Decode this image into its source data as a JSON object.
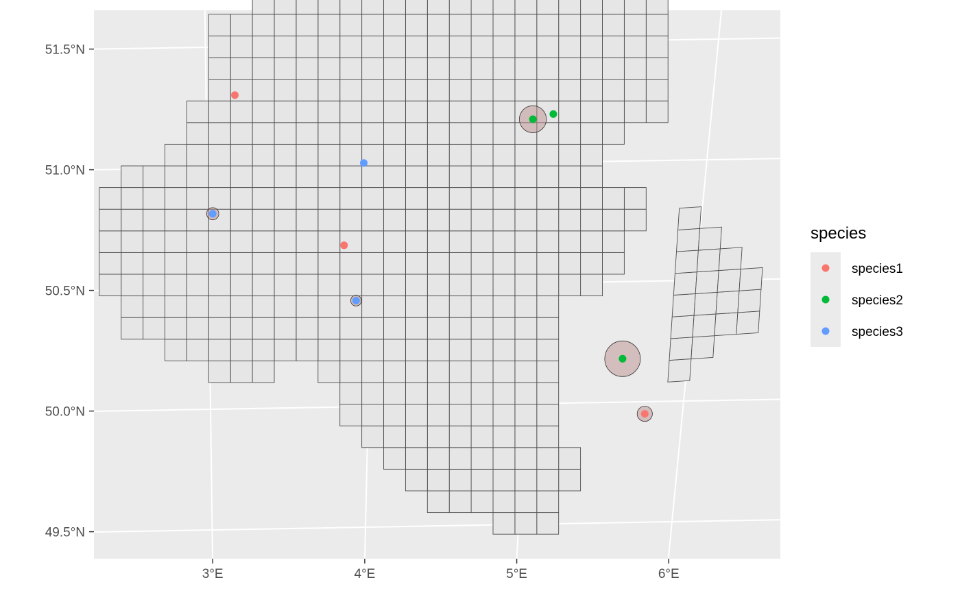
{
  "chart_data": {
    "type": "map",
    "x_axis": {
      "range": [
        2.35,
        6.62
      ],
      "ticks": [
        {
          "value": 3,
          "label": "3°E"
        },
        {
          "value": 4,
          "label": "4°E"
        },
        {
          "value": 5,
          "label": "5°E"
        },
        {
          "value": 6,
          "label": "6°E"
        }
      ]
    },
    "y_axis": {
      "range": [
        49.36,
        51.67
      ],
      "ticks": [
        {
          "value": 51.5,
          "label": "51.5°N"
        },
        {
          "value": 51.0,
          "label": "51.0°N"
        },
        {
          "value": 50.5,
          "label": "50.5°N"
        },
        {
          "value": 50.0,
          "label": "50.0°N"
        },
        {
          "value": 49.5,
          "label": "49.5°N"
        }
      ]
    },
    "grid": true,
    "legend": {
      "title": "species",
      "position": "right",
      "items": [
        {
          "label": "species1",
          "color": "#F8766D"
        },
        {
          "label": "species2",
          "color": "#00BA38"
        },
        {
          "label": "species3",
          "color": "#619CFF"
        }
      ]
    },
    "colors": {
      "panel_background": "#EBEBEB",
      "grid_line": "#FFFFFF",
      "cell_fill": "#E6E6E6",
      "cell_stroke": "#4D4D4D",
      "uncertainty_fill": "#BC8F8F",
      "uncertainty_stroke": "#333333"
    },
    "occurrences": [
      {
        "species": "species1",
        "lon": 3.17,
        "lat": 51.3,
        "uncertainty_km": 0
      },
      {
        "species": "species1",
        "lon": 3.83,
        "lat": 50.67,
        "uncertainty_km": 1.5
      },
      {
        "species": "species1",
        "lon": 5.76,
        "lat": 49.95,
        "uncertainty_km": 3.5
      },
      {
        "species": "species2",
        "lon": 4.94,
        "lat": 51.18,
        "uncertainty_km": 6.2
      },
      {
        "species": "species2",
        "lon": 5.06,
        "lat": 51.2,
        "uncertainty_km": 0
      },
      {
        "species": "species2",
        "lon": 5.59,
        "lat": 50.18,
        "uncertainty_km": 8.2
      },
      {
        "species": "species3",
        "lon": 3.03,
        "lat": 50.81,
        "uncertainty_km": 2.8
      },
      {
        "species": "species3",
        "lon": 3.94,
        "lat": 51.01,
        "uncertainty_km": 1.5
      },
      {
        "species": "species3",
        "lon": 3.91,
        "lat": 50.44,
        "uncertainty_km": 2.5
      }
    ]
  }
}
